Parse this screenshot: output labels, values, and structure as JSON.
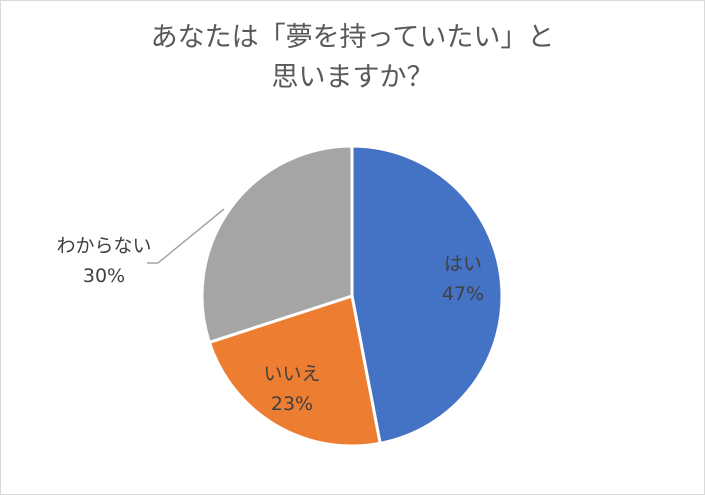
{
  "chart_data": {
    "type": "pie",
    "title_lines": [
      "あなたは「夢を持っていたい」と",
      "思いますか？"
    ],
    "slices": [
      {
        "label": "はい",
        "value": 47,
        "value_label": "47%",
        "color": "#4472c4"
      },
      {
        "label": "いいえ",
        "value": 23,
        "value_label": "23%",
        "color": "#ed7d31"
      },
      {
        "label": "わからない",
        "value": 30,
        "value_label": "30%",
        "color": "#a5a5a5"
      }
    ]
  }
}
